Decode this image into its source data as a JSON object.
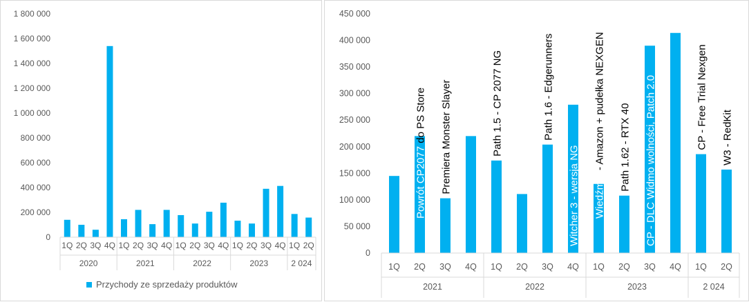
{
  "colors": {
    "bar": "#00B0F0",
    "axis": "#d9d9d9",
    "text": "#595959"
  },
  "legend": {
    "label": "Przychody ze sprzedaży produktów",
    "icon": "square-swatch"
  },
  "chart_data": [
    {
      "type": "bar",
      "series": [
        {
          "name": "Przychody ze sprzedaży produktów",
          "values": [
            140000,
            100000,
            60000,
            1540000,
            145000,
            220000,
            105000,
            220000,
            178000,
            110000,
            205000,
            278000,
            133000,
            110000,
            390000,
            413000,
            187000,
            158000
          ]
        }
      ],
      "categories": [
        "1Q",
        "2Q",
        "3Q",
        "4Q",
        "1Q",
        "2Q",
        "3Q",
        "4Q",
        "1Q",
        "2Q",
        "3Q",
        "4Q",
        "1Q",
        "2Q",
        "3Q",
        "4Q",
        "1Q",
        "2Q"
      ],
      "groups": [
        {
          "label": "2020",
          "count": 4
        },
        {
          "label": "2021",
          "count": 4
        },
        {
          "label": "2022",
          "count": 4
        },
        {
          "label": "2023",
          "count": 4
        },
        {
          "label": "2 024",
          "count": 2
        }
      ],
      "yticks": [
        "0",
        "200 000",
        "400 000",
        "600 000",
        "800 000",
        "1 000 000",
        "1 200 000",
        "1 400 000",
        "1 600 000",
        "1 800 000"
      ],
      "ylim": [
        0,
        1800000
      ],
      "grid": false,
      "legend_position": "bottom"
    },
    {
      "type": "bar",
      "series": [
        {
          "name": "Przychody ze sprzedaży produktów",
          "values": [
            145000,
            220000,
            103000,
            220000,
            174000,
            111000,
            204000,
            279000,
            130000,
            108000,
            390000,
            414000,
            186000,
            157000
          ]
        }
      ],
      "categories": [
        "1Q",
        "2Q",
        "3Q",
        "4Q",
        "1Q",
        "2Q",
        "3Q",
        "4Q",
        "1Q",
        "2Q",
        "3Q",
        "4Q",
        "1Q",
        "2Q"
      ],
      "groups": [
        {
          "label": "2021",
          "count": 4
        },
        {
          "label": "2022",
          "count": 4
        },
        {
          "label": "2023",
          "count": 4
        },
        {
          "label": "2 024",
          "count": 2
        }
      ],
      "yticks": [
        "0",
        "50 000",
        "100 000",
        "150 000",
        "200 000",
        "250 000",
        "300 000",
        "350 000",
        "400 000",
        "450 000"
      ],
      "ylim": [
        0,
        450000
      ],
      "grid": false,
      "annotations": [
        {
          "bar": 1,
          "text": "Powrót CP2077 do PS Store",
          "inside_part": "Powrót CP2077",
          "outside_part": " do PS Store"
        },
        {
          "bar": 2,
          "text": "Premiera Monster Slayer",
          "inside_part": "",
          "outside_part": "Premiera Monster Slayer"
        },
        {
          "bar": 4,
          "text": "Path 1.5 - CP 2077 NG",
          "inside_part": "",
          "outside_part": "Path 1.5 - CP 2077 NG"
        },
        {
          "bar": 6,
          "text": "Path 1.6 - Edgerunners",
          "inside_part": "",
          "outside_part": "Path 1.6 - Edgerunners"
        },
        {
          "bar": 7,
          "text": "Witcher 3 - wersja NG",
          "inside_part": "Witcher 3 - wersja NG",
          "outside_part": ""
        },
        {
          "bar": 8,
          "text": "Wiedźmin - Amazon + pudełka NEXGEN",
          "inside_part": "Wiedźmin",
          "outside_part": " - Amazon + pudełka NEXGEN"
        },
        {
          "bar": 9,
          "text": "Path 1.62 - RTX 40",
          "inside_part": "",
          "outside_part": "Path 1.62 - RTX 40"
        },
        {
          "bar": 10,
          "text": "CP - DLC Widmo wolności, Patch 2.0",
          "inside_part": "CP - DLC Widmo wolności, Patch 2.0",
          "outside_part": ""
        },
        {
          "bar": 12,
          "text": "CP - Free Trial  Nexgen",
          "inside_part": "",
          "outside_part": "CP - Free Trial  Nexgen"
        },
        {
          "bar": 13,
          "text": "W3 - RedKit",
          "inside_part": "",
          "outside_part": "W3 - RedKit"
        }
      ]
    }
  ]
}
